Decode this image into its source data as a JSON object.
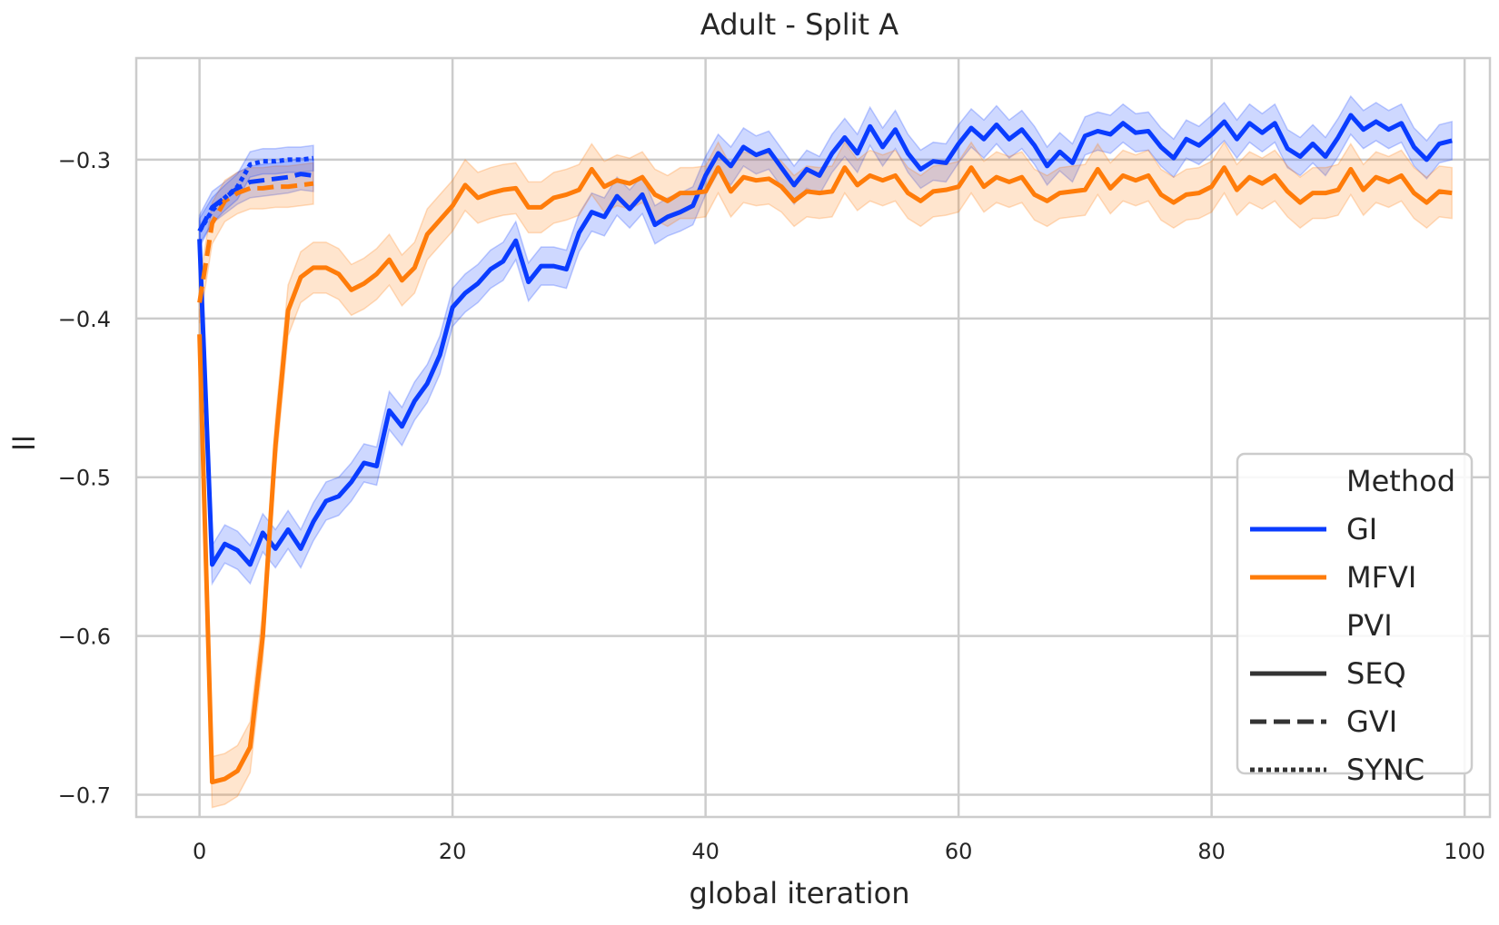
{
  "chart_data": {
    "type": "line",
    "title": "Adult - Split A",
    "xlabel": "global iteration",
    "ylabel": "ll",
    "xlim": [
      -5,
      102
    ],
    "ylim": [
      -0.714,
      -0.236
    ],
    "xticks": [
      0,
      20,
      40,
      60,
      80,
      100
    ],
    "xtick_labels": [
      "0",
      "20",
      "40",
      "60",
      "80",
      "100"
    ],
    "yticks": [
      -0.7,
      -0.6,
      -0.5,
      -0.4,
      -0.3
    ],
    "ytick_labels": [
      "−0.7",
      "−0.6",
      "−0.5",
      "−0.4",
      "−0.3"
    ],
    "grid": true,
    "legend_position": "lower-right",
    "legend": {
      "hue_title": "Method",
      "hue_entries": [
        {
          "label": "GI",
          "color": "#0a3cff"
        },
        {
          "label": "MFVI",
          "color": "#ff7c0a"
        }
      ],
      "style_title": "PVI",
      "style_entries": [
        {
          "label": "SEQ",
          "dash": "solid"
        },
        {
          "label": "GVI",
          "dash": "dashed"
        },
        {
          "label": "SYNC",
          "dash": "dotted"
        }
      ]
    },
    "series": [
      {
        "name": "GI",
        "pvi": "SEQ",
        "method": "GI",
        "color": "#0a3cff",
        "dash": "solid",
        "band": 0.012,
        "x": [
          0,
          1,
          2,
          3,
          4,
          5,
          6,
          7,
          8,
          9,
          10,
          11,
          12,
          13,
          14,
          15,
          16,
          17,
          18,
          19,
          20,
          21,
          22,
          23,
          24,
          25,
          26,
          27,
          28,
          29,
          30,
          31,
          32,
          33,
          34,
          35,
          36,
          37,
          38,
          39,
          40,
          41,
          42,
          43,
          44,
          45,
          46,
          47,
          48,
          49,
          50,
          51,
          52,
          53,
          54,
          55,
          56,
          57,
          58,
          59,
          60,
          61,
          62,
          63,
          64,
          65,
          66,
          67,
          68,
          69,
          70,
          71,
          72,
          73,
          74,
          75,
          76,
          77,
          78,
          79,
          80,
          81,
          82,
          83,
          84,
          85,
          86,
          87,
          88,
          89,
          90,
          91,
          92,
          93,
          94,
          95,
          96,
          97,
          98,
          99
        ],
        "y": [
          -0.35,
          -0.555,
          -0.542,
          -0.546,
          -0.555,
          -0.535,
          -0.545,
          -0.533,
          -0.545,
          -0.528,
          -0.515,
          -0.512,
          -0.503,
          -0.491,
          -0.493,
          -0.458,
          -0.468,
          -0.452,
          -0.441,
          -0.423,
          -0.393,
          -0.384,
          -0.378,
          -0.369,
          -0.364,
          -0.351,
          -0.377,
          -0.367,
          -0.367,
          -0.369,
          -0.346,
          -0.333,
          -0.336,
          -0.323,
          -0.331,
          -0.322,
          -0.341,
          -0.336,
          -0.333,
          -0.329,
          -0.31,
          -0.296,
          -0.304,
          -0.292,
          -0.297,
          -0.294,
          -0.305,
          -0.316,
          -0.306,
          -0.31,
          -0.296,
          -0.286,
          -0.296,
          -0.279,
          -0.292,
          -0.281,
          -0.296,
          -0.306,
          -0.301,
          -0.302,
          -0.29,
          -0.28,
          -0.287,
          -0.278,
          -0.287,
          -0.281,
          -0.291,
          -0.304,
          -0.295,
          -0.302,
          -0.285,
          -0.282,
          -0.284,
          -0.277,
          -0.283,
          -0.282,
          -0.292,
          -0.299,
          -0.287,
          -0.291,
          -0.284,
          -0.276,
          -0.287,
          -0.277,
          -0.283,
          -0.277,
          -0.293,
          -0.298,
          -0.29,
          -0.298,
          -0.286,
          -0.272,
          -0.281,
          -0.276,
          -0.281,
          -0.277,
          -0.292,
          -0.3,
          -0.29,
          -0.288
        ]
      },
      {
        "name": "MFVI",
        "pvi": "SEQ",
        "method": "MFVI",
        "color": "#ff7c0a",
        "dash": "solid",
        "band": 0.016,
        "x": [
          0,
          1,
          2,
          3,
          4,
          5,
          6,
          7,
          8,
          9,
          10,
          11,
          12,
          13,
          14,
          15,
          16,
          17,
          18,
          19,
          20,
          21,
          22,
          23,
          24,
          25,
          26,
          27,
          28,
          29,
          30,
          31,
          32,
          33,
          34,
          35,
          36,
          37,
          38,
          39,
          40,
          41,
          42,
          43,
          44,
          45,
          46,
          47,
          48,
          49,
          50,
          51,
          52,
          53,
          54,
          55,
          56,
          57,
          58,
          59,
          60,
          61,
          62,
          63,
          64,
          65,
          66,
          67,
          68,
          69,
          70,
          71,
          72,
          73,
          74,
          75,
          76,
          77,
          78,
          79,
          80,
          81,
          82,
          83,
          84,
          85,
          86,
          87,
          88,
          89,
          90,
          91,
          92,
          93,
          94,
          95,
          96,
          97,
          98,
          99
        ],
        "y": [
          -0.41,
          -0.692,
          -0.69,
          -0.685,
          -0.67,
          -0.6,
          -0.48,
          -0.395,
          -0.374,
          -0.368,
          -0.368,
          -0.372,
          -0.382,
          -0.378,
          -0.372,
          -0.363,
          -0.376,
          -0.368,
          -0.347,
          -0.338,
          -0.329,
          -0.316,
          -0.324,
          -0.321,
          -0.319,
          -0.318,
          -0.33,
          -0.33,
          -0.324,
          -0.322,
          -0.319,
          -0.306,
          -0.317,
          -0.313,
          -0.315,
          -0.311,
          -0.322,
          -0.326,
          -0.321,
          -0.321,
          -0.32,
          -0.305,
          -0.32,
          -0.311,
          -0.313,
          -0.312,
          -0.317,
          -0.326,
          -0.32,
          -0.321,
          -0.32,
          -0.305,
          -0.316,
          -0.31,
          -0.313,
          -0.31,
          -0.321,
          -0.326,
          -0.32,
          -0.319,
          -0.317,
          -0.305,
          -0.317,
          -0.311,
          -0.314,
          -0.311,
          -0.322,
          -0.326,
          -0.321,
          -0.32,
          -0.319,
          -0.306,
          -0.318,
          -0.31,
          -0.313,
          -0.31,
          -0.322,
          -0.327,
          -0.322,
          -0.321,
          -0.317,
          -0.305,
          -0.319,
          -0.311,
          -0.315,
          -0.31,
          -0.32,
          -0.327,
          -0.321,
          -0.321,
          -0.319,
          -0.306,
          -0.319,
          -0.311,
          -0.314,
          -0.31,
          -0.321,
          -0.327,
          -0.32,
          -0.321
        ]
      },
      {
        "name": "GI",
        "pvi": "GVI",
        "method": "GI",
        "color": "#0a3cff",
        "dash": "dashed",
        "band": 0.01,
        "x": [
          0,
          1,
          2,
          3,
          4,
          5,
          6,
          7,
          8,
          9
        ],
        "y": [
          -0.345,
          -0.33,
          -0.324,
          -0.318,
          -0.314,
          -0.313,
          -0.312,
          -0.311,
          -0.309,
          -0.31
        ]
      },
      {
        "name": "MFVI",
        "pvi": "GVI",
        "method": "MFVI",
        "color": "#ff7c0a",
        "dash": "dashed",
        "band": 0.013,
        "x": [
          0,
          1,
          2,
          3,
          4,
          5,
          6,
          7,
          8,
          9
        ],
        "y": [
          -0.39,
          -0.34,
          -0.326,
          -0.321,
          -0.318,
          -0.318,
          -0.317,
          -0.317,
          -0.316,
          -0.315
        ]
      },
      {
        "name": "GI",
        "pvi": "SYNC",
        "method": "GI",
        "color": "#0a3cff",
        "dash": "dotted",
        "band": 0.008,
        "x": [
          0,
          1,
          2,
          3,
          4,
          5,
          6,
          7,
          8,
          9
        ],
        "y": [
          -0.345,
          -0.332,
          -0.324,
          -0.317,
          -0.303,
          -0.301,
          -0.301,
          -0.3,
          -0.3,
          -0.299
        ]
      }
    ]
  }
}
